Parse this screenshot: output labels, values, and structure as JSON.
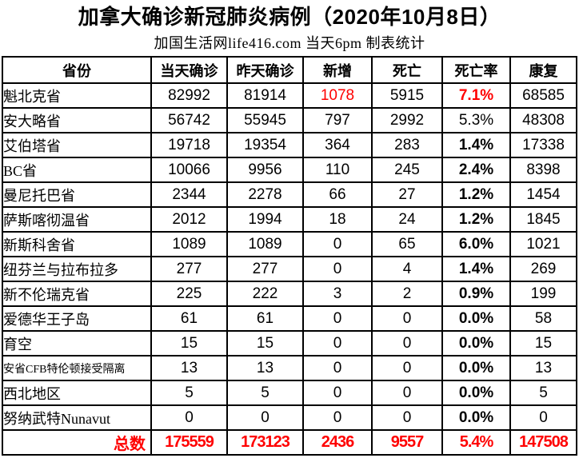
{
  "title": "加拿大确诊新冠肺炎病例（2020年10月8日）",
  "subtitle": "加国生活网life416.com 当天6pm 制表统计",
  "colors": {
    "accent_red": "#ff0000",
    "text": "#000000",
    "border": "#000000",
    "background": "#ffffff"
  },
  "chart_data": {
    "type": "table",
    "title": "加拿大确诊新冠肺炎病例（2020年10月8日）",
    "subtitle": "加国生活网life416.com 当天6pm 制表统计",
    "columns": [
      "省份",
      "当天确诊",
      "昨天确诊",
      "新增",
      "死亡",
      "死亡率",
      "康复"
    ],
    "rows": [
      {
        "province": "魁北克省",
        "today": "82992",
        "yesterday": "81914",
        "new": "1078",
        "deaths": "5915",
        "rate": "7.1%",
        "recovered": "68585",
        "flags": {
          "new_red": true,
          "rate_red": true
        }
      },
      {
        "province": "安大略省",
        "today": "56742",
        "yesterday": "55945",
        "new": "797",
        "deaths": "2992",
        "rate": "5.3%",
        "recovered": "48308",
        "flags": {
          "rate_normal": true
        }
      },
      {
        "province": "艾伯塔省",
        "today": "19718",
        "yesterday": "19354",
        "new": "364",
        "deaths": "283",
        "rate": "1.4%",
        "recovered": "17338",
        "flags": {}
      },
      {
        "province": "BC省",
        "today": "10066",
        "yesterday": "9956",
        "new": "110",
        "deaths": "245",
        "rate": "2.4%",
        "recovered": "8398",
        "flags": {}
      },
      {
        "province": "曼尼托巴省",
        "today": "2344",
        "yesterday": "2278",
        "new": "66",
        "deaths": "27",
        "rate": "1.2%",
        "recovered": "1454",
        "flags": {}
      },
      {
        "province": "萨斯喀彻温省",
        "today": "2012",
        "yesterday": "1994",
        "new": "18",
        "deaths": "24",
        "rate": "1.2%",
        "recovered": "1845",
        "flags": {}
      },
      {
        "province": "新斯科舍省",
        "today": "1089",
        "yesterday": "1089",
        "new": "0",
        "deaths": "65",
        "rate": "6.0%",
        "recovered": "1021",
        "flags": {}
      },
      {
        "province": "纽芬兰与拉布拉多",
        "today": "277",
        "yesterday": "277",
        "new": "0",
        "deaths": "4",
        "rate": "1.4%",
        "recovered": "269",
        "flags": {}
      },
      {
        "province": "新不伦瑞克省",
        "today": "225",
        "yesterday": "222",
        "new": "3",
        "deaths": "2",
        "rate": "0.9%",
        "recovered": "199",
        "flags": {}
      },
      {
        "province": "爱德华王子岛",
        "today": "61",
        "yesterday": "61",
        "new": "0",
        "deaths": "0",
        "rate": "0.0%",
        "recovered": "58",
        "flags": {}
      },
      {
        "province": "育空",
        "today": "15",
        "yesterday": "15",
        "new": "0",
        "deaths": "0",
        "rate": "0.0%",
        "recovered": "15",
        "flags": {}
      },
      {
        "province": "安省CFB特伦顿接受隔离",
        "today": "13",
        "yesterday": "13",
        "new": "0",
        "deaths": "0",
        "rate": "0.0%",
        "recovered": "13",
        "flags": {
          "small": true
        }
      },
      {
        "province": "西北地区",
        "today": "5",
        "yesterday": "5",
        "new": "0",
        "deaths": "0",
        "rate": "0.0%",
        "recovered": "5",
        "flags": {}
      },
      {
        "province": "努纳武特Nunavut",
        "today": "0",
        "yesterday": "0",
        "new": "0",
        "deaths": "0",
        "rate": "0.0%",
        "recovered": "0",
        "flags": {}
      }
    ],
    "total": {
      "label": "总数",
      "today": "175559",
      "yesterday": "173123",
      "new": "2436",
      "deaths": "9557",
      "rate": "5.4%",
      "recovered": "147508"
    }
  }
}
